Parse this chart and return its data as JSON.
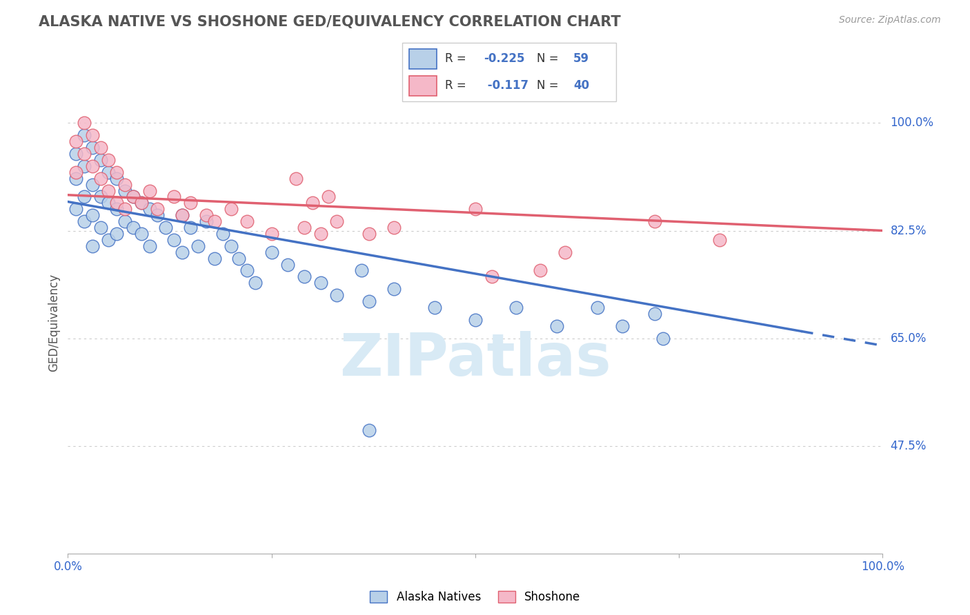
{
  "title": "ALASKA NATIVE VS SHOSHONE GED/EQUIVALENCY CORRELATION CHART",
  "source": "Source: ZipAtlas.com",
  "ylabel": "GED/Equivalency",
  "xlim": [
    0.0,
    1.0
  ],
  "ylim": [
    0.3,
    1.05
  ],
  "y_tick_labels_right": [
    "100.0%",
    "82.5%",
    "65.0%",
    "47.5%"
  ],
  "y_tick_positions_right": [
    1.0,
    0.825,
    0.65,
    0.475
  ],
  "alaska_R": -0.225,
  "alaska_N": 59,
  "shoshone_R": -0.117,
  "shoshone_N": 40,
  "alaska_color": "#b8d0e8",
  "shoshone_color": "#f5b8c8",
  "alaska_line_color": "#4472c4",
  "shoshone_line_color": "#e06070",
  "alaska_line_start_y": 0.872,
  "alaska_line_end_y": 0.638,
  "alaska_line_solid_end_x": 0.9,
  "shoshone_line_start_y": 0.883,
  "shoshone_line_end_y": 0.825,
  "alaska_scatter_x": [
    0.01,
    0.01,
    0.01,
    0.02,
    0.02,
    0.02,
    0.02,
    0.03,
    0.03,
    0.03,
    0.03,
    0.04,
    0.04,
    0.04,
    0.05,
    0.05,
    0.05,
    0.06,
    0.06,
    0.06,
    0.07,
    0.07,
    0.08,
    0.08,
    0.09,
    0.09,
    0.1,
    0.1,
    0.11,
    0.12,
    0.13,
    0.14,
    0.14,
    0.15,
    0.16,
    0.17,
    0.18,
    0.19,
    0.2,
    0.21,
    0.22,
    0.23,
    0.25,
    0.27,
    0.29,
    0.31,
    0.33,
    0.36,
    0.37,
    0.4,
    0.45,
    0.5,
    0.55,
    0.6,
    0.65,
    0.68,
    0.72,
    0.73,
    0.37
  ],
  "alaska_scatter_y": [
    0.95,
    0.91,
    0.86,
    0.98,
    0.93,
    0.88,
    0.84,
    0.96,
    0.9,
    0.85,
    0.8,
    0.94,
    0.88,
    0.83,
    0.92,
    0.87,
    0.81,
    0.91,
    0.86,
    0.82,
    0.89,
    0.84,
    0.88,
    0.83,
    0.87,
    0.82,
    0.86,
    0.8,
    0.85,
    0.83,
    0.81,
    0.85,
    0.79,
    0.83,
    0.8,
    0.84,
    0.78,
    0.82,
    0.8,
    0.78,
    0.76,
    0.74,
    0.79,
    0.77,
    0.75,
    0.74,
    0.72,
    0.76,
    0.71,
    0.73,
    0.7,
    0.68,
    0.7,
    0.67,
    0.7,
    0.67,
    0.69,
    0.65,
    0.5
  ],
  "shoshone_scatter_x": [
    0.01,
    0.01,
    0.02,
    0.02,
    0.03,
    0.03,
    0.04,
    0.04,
    0.05,
    0.05,
    0.06,
    0.06,
    0.07,
    0.07,
    0.08,
    0.09,
    0.1,
    0.11,
    0.13,
    0.14,
    0.15,
    0.17,
    0.18,
    0.2,
    0.22,
    0.25,
    0.29,
    0.3,
    0.31,
    0.33,
    0.37,
    0.4,
    0.5,
    0.52,
    0.58,
    0.61,
    0.72,
    0.8,
    0.28,
    0.32
  ],
  "shoshone_scatter_y": [
    0.97,
    0.92,
    1.0,
    0.95,
    0.98,
    0.93,
    0.96,
    0.91,
    0.94,
    0.89,
    0.92,
    0.87,
    0.9,
    0.86,
    0.88,
    0.87,
    0.89,
    0.86,
    0.88,
    0.85,
    0.87,
    0.85,
    0.84,
    0.86,
    0.84,
    0.82,
    0.83,
    0.87,
    0.82,
    0.84,
    0.82,
    0.83,
    0.86,
    0.75,
    0.76,
    0.79,
    0.84,
    0.81,
    0.91,
    0.88
  ]
}
